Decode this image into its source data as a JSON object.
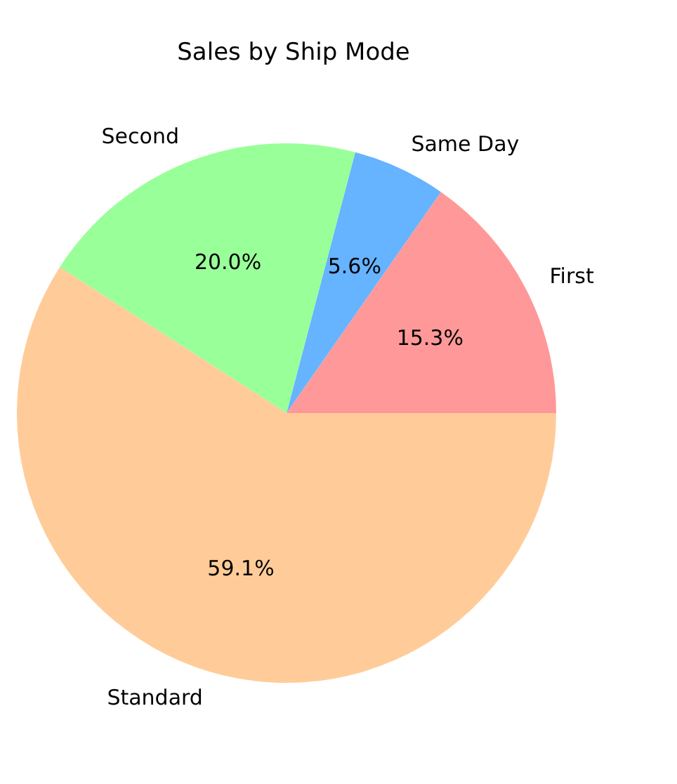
{
  "chart_data": {
    "type": "pie",
    "title": "Sales by Ship Mode",
    "categories": [
      "First",
      "Same Day",
      "Second",
      "Standard"
    ],
    "values": [
      15.3,
      5.6,
      20.0,
      59.1
    ],
    "colors": [
      "#ff9999",
      "#66b3ff",
      "#99ff99",
      "#ffcc99"
    ],
    "value_labels": [
      "15.3%",
      "5.6%",
      "20.0%",
      "59.1%"
    ],
    "legend": false
  }
}
